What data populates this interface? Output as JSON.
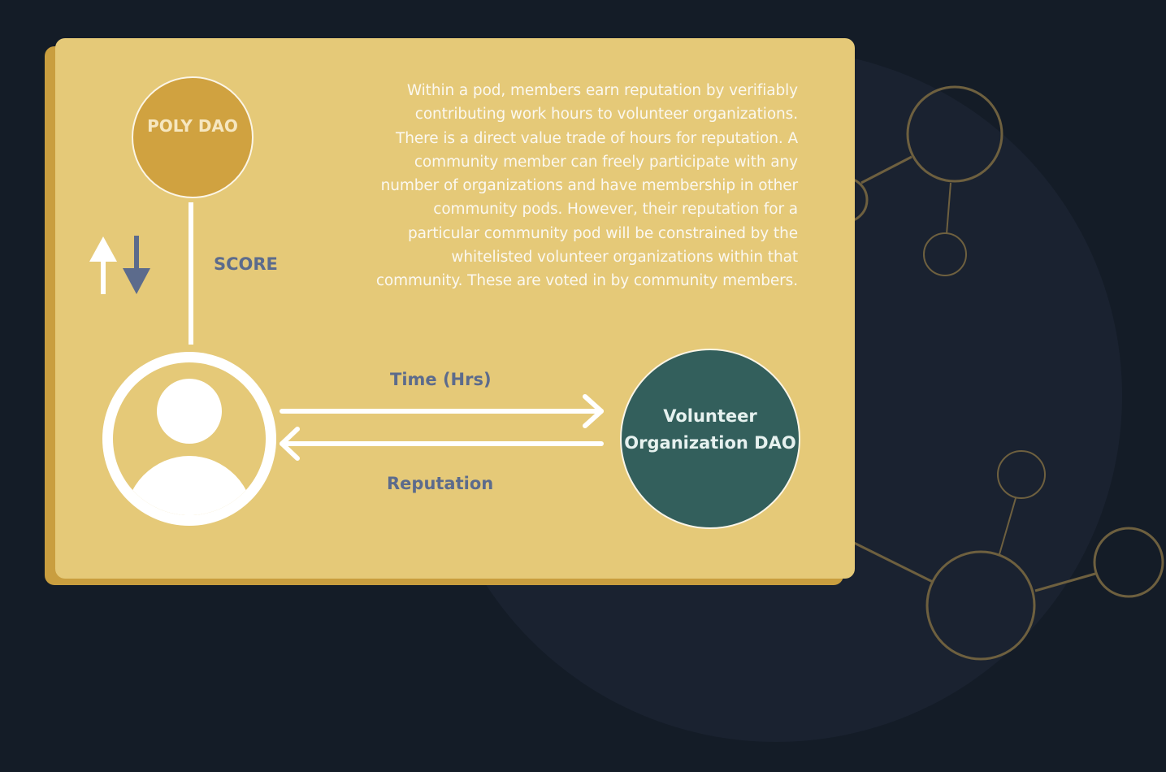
{
  "diagram": {
    "description": "Within a pod, members earn reputation by verifiably contributing work hours to volunteer organizations. There is a direct value trade of hours for reputation. A community member can freely participate with any number of organizations and have membership in other community pods. However, their reputation for a particular community pod will be constrained by the whitelisted volunteer organizations within that community.  These are voted in by community members.",
    "poly_dao_label": "POLY DAO",
    "score_label": "SCORE",
    "time_label": "Time (Hrs)",
    "reputation_label": "Reputation",
    "org_label_line1": "Volunteer",
    "org_label_line2": "Organization DAO",
    "icons": [
      "user-icon",
      "arrow-up-icon",
      "arrow-down-icon",
      "arrow-right-icon",
      "arrow-left-icon"
    ],
    "colors": {
      "background": "#141c27",
      "card": "#e5c978",
      "card_shadow": "#c99e3f",
      "poly_dao": "#d0a240",
      "org_dao": "#335f5c",
      "label": "#5c6b8c",
      "network_line": "#6e603f"
    }
  }
}
